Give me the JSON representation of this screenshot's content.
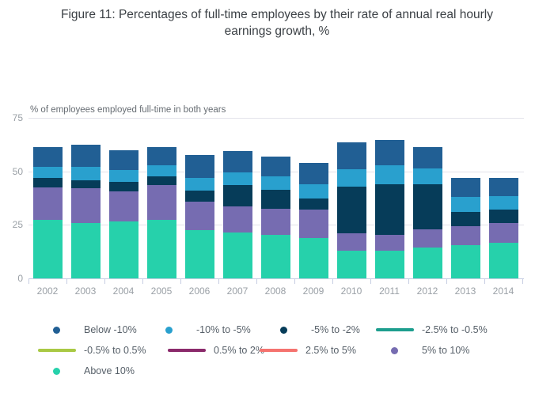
{
  "title": "Figure 11: Percentages of full-time employees by their rate of annual real hourly earnings growth, %",
  "chart_data": {
    "type": "bar",
    "stacked": true,
    "title": "Figure 11: Percentages of full-time employees by their rate of annual real hourly earnings growth, %",
    "xlabel": "",
    "ylabel": "% of employees employed full-time in both years",
    "ylim": [
      0,
      75
    ],
    "y_ticks": [
      0,
      25,
      50,
      75
    ],
    "grid": true,
    "legend_position": "bottom",
    "categories": [
      "2002",
      "2003",
      "2004",
      "2005",
      "2006",
      "2007",
      "2008",
      "2009",
      "2010",
      "2011",
      "2012",
      "2013",
      "2014"
    ],
    "series": [
      {
        "name": "Above 10%",
        "color": "#26d1ab",
        "values": [
          27.5,
          26.0,
          26.5,
          27.5,
          22.5,
          21.5,
          20.5,
          19.0,
          13.0,
          13.0,
          14.5,
          15.5,
          16.5
        ]
      },
      {
        "name": "5% to 10%",
        "color": "#766cb1",
        "values": [
          15.0,
          16.0,
          14.0,
          16.0,
          13.5,
          12.0,
          12.0,
          13.0,
          8.0,
          7.5,
          8.5,
          9.0,
          9.5
        ]
      },
      {
        "name": "-5% to -2%",
        "color": "#063c59",
        "values": [
          4.5,
          4.0,
          4.5,
          4.0,
          5.0,
          10.0,
          9.0,
          5.5,
          22.0,
          23.5,
          21.0,
          6.5,
          6.0
        ]
      },
      {
        "name": "-10% to -5%",
        "color": "#29a0ce",
        "values": [
          5.0,
          6.0,
          5.5,
          5.5,
          6.0,
          6.0,
          6.0,
          6.5,
          8.0,
          9.0,
          7.5,
          7.0,
          6.5
        ]
      },
      {
        "name": "Below -10%",
        "color": "#215f94",
        "values": [
          9.5,
          10.5,
          9.5,
          8.5,
          10.5,
          10.0,
          9.5,
          10.0,
          12.5,
          11.5,
          10.0,
          9.0,
          8.5
        ]
      }
    ],
    "legend_only_series": [
      {
        "name": "-2.5% to -0.5%",
        "color": "#1d9e8e",
        "marker": "line"
      },
      {
        "name": "-0.5% to 0.5%",
        "color": "#a9c944",
        "marker": "line"
      },
      {
        "name": "0.5% to 2%",
        "color": "#8b2a6b",
        "marker": "line"
      },
      {
        "name": "2.5% to 5%",
        "color": "#f5736f",
        "marker": "line"
      }
    ]
  },
  "legend": {
    "rows": [
      [
        {
          "label": "Below -10%",
          "marker": "circle",
          "color": "#215f94"
        },
        {
          "label": "-10% to -5%",
          "marker": "circle",
          "color": "#29a0ce"
        },
        {
          "label": "-5% to -2%",
          "marker": "circle",
          "color": "#063c59"
        },
        {
          "label": "-2.5% to -0.5%",
          "marker": "line",
          "color": "#1d9e8e"
        }
      ],
      [
        {
          "label": "-0.5% to 0.5%",
          "marker": "line",
          "color": "#a9c944"
        },
        {
          "label": "0.5% to 2%",
          "marker": "line",
          "color": "#8b2a6b"
        },
        {
          "label": "2.5% to 5%",
          "marker": "line",
          "color": "#f5736f"
        },
        {
          "label": "5% to 10%",
          "marker": "circle",
          "color": "#766cb1"
        }
      ],
      [
        {
          "label": "Above 10%",
          "marker": "circle",
          "color": "#26d1ab"
        }
      ]
    ]
  }
}
